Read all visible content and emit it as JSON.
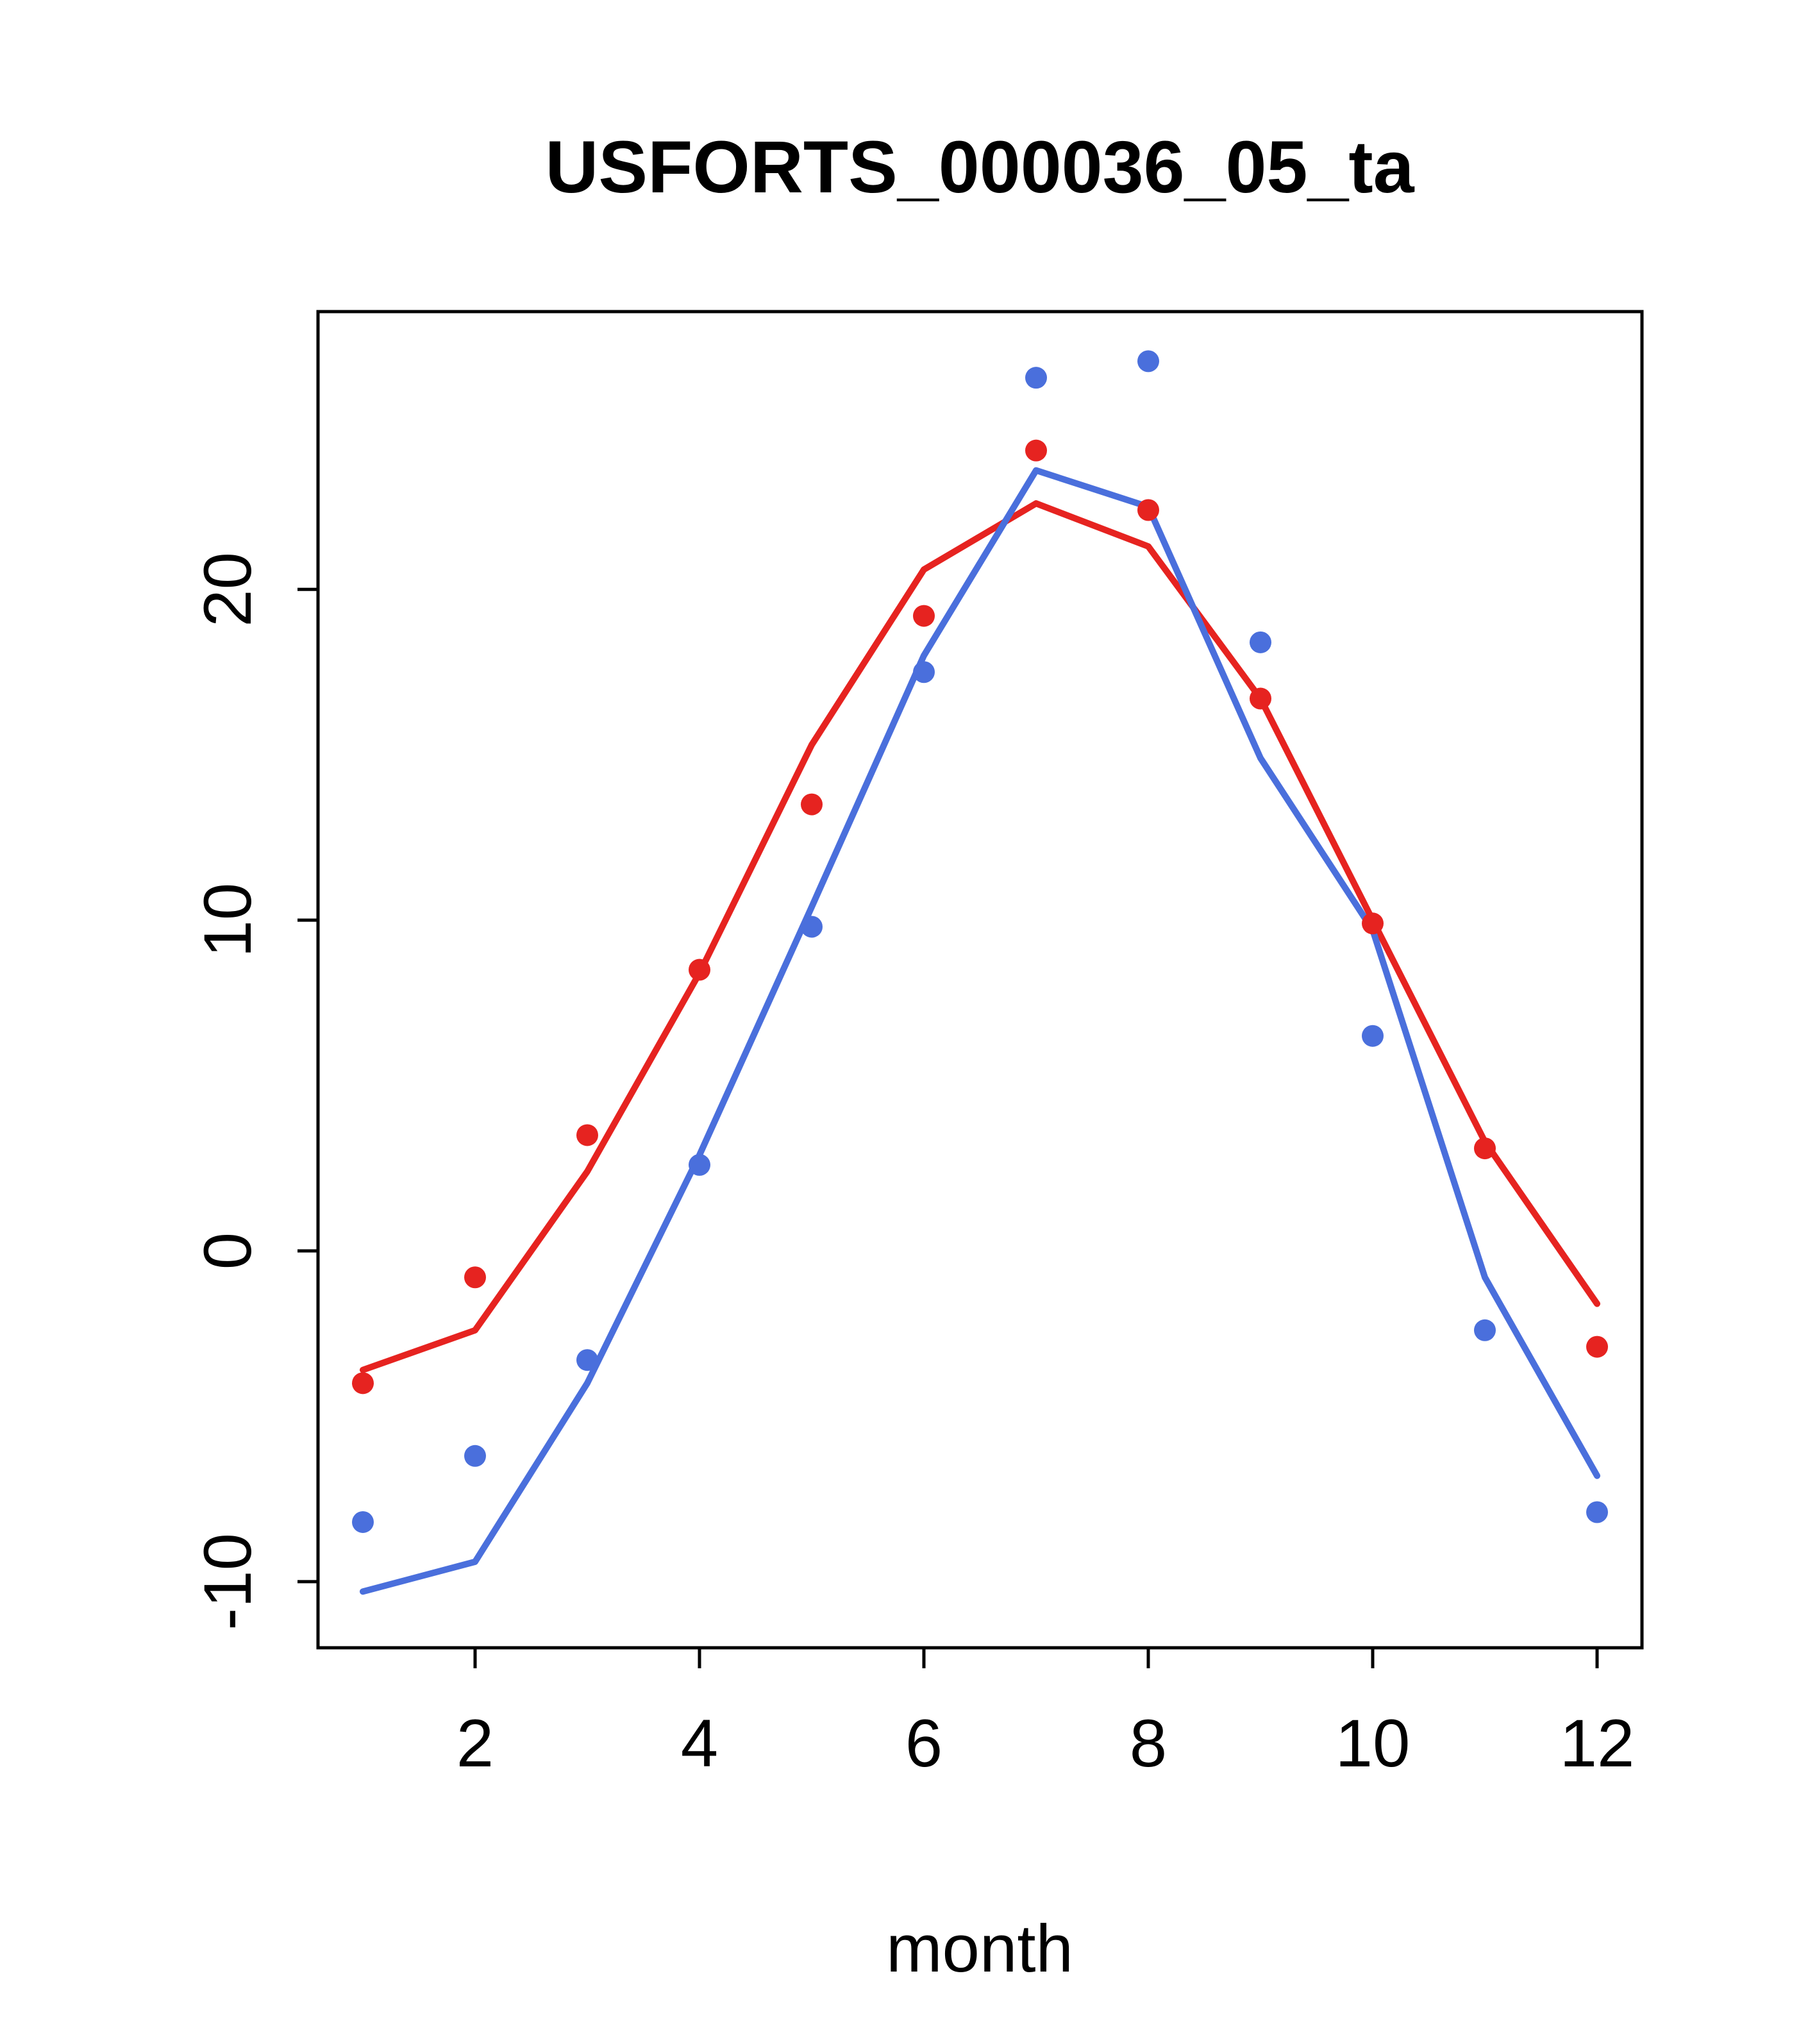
{
  "title": "USFORTS_000036_05_ta",
  "xlabel": "month",
  "colors": {
    "red_series": "#e62320",
    "blue_series": "#4a6fdc",
    "axis": "#000000",
    "background": "#ffffff"
  },
  "chart_data": {
    "type": "line",
    "title": "USFORTS_000036_05_ta",
    "xlabel": "month",
    "ylabel": "",
    "xlim": [
      0.6,
      12.4
    ],
    "ylim": [
      -12,
      28.4
    ],
    "x_ticks": [
      2,
      4,
      6,
      8,
      10,
      12
    ],
    "y_ticks": [
      -10,
      0,
      10,
      20
    ],
    "grid": false,
    "legend": "none",
    "x": [
      1,
      2,
      3,
      4,
      5,
      6,
      7,
      8,
      9,
      10,
      11,
      12
    ],
    "series": [
      {
        "name": "red-line",
        "type": "line",
        "color": "#e62320",
        "values": [
          -3.6,
          -2.4,
          2.4,
          8.4,
          15.3,
          20.6,
          22.6,
          21.3,
          16.7,
          10.0,
          3.3,
          -1.6
        ]
      },
      {
        "name": "blue-line",
        "type": "line",
        "color": "#4a6fdc",
        "values": [
          -10.3,
          -9.4,
          -4.0,
          2.9,
          10.4,
          18.0,
          23.6,
          22.5,
          14.9,
          9.7,
          -0.8,
          -6.8
        ]
      },
      {
        "name": "red-points",
        "type": "points",
        "color": "#e62320",
        "values": [
          -4.0,
          -0.8,
          3.5,
          8.5,
          13.5,
          19.2,
          24.2,
          22.4,
          16.7,
          9.9,
          3.1,
          -2.9
        ]
      },
      {
        "name": "blue-points",
        "type": "points",
        "color": "#4a6fdc",
        "values": [
          -8.2,
          -6.2,
          -3.3,
          2.6,
          9.8,
          17.5,
          26.4,
          26.9,
          18.4,
          6.5,
          -2.4,
          -7.9
        ]
      }
    ]
  }
}
